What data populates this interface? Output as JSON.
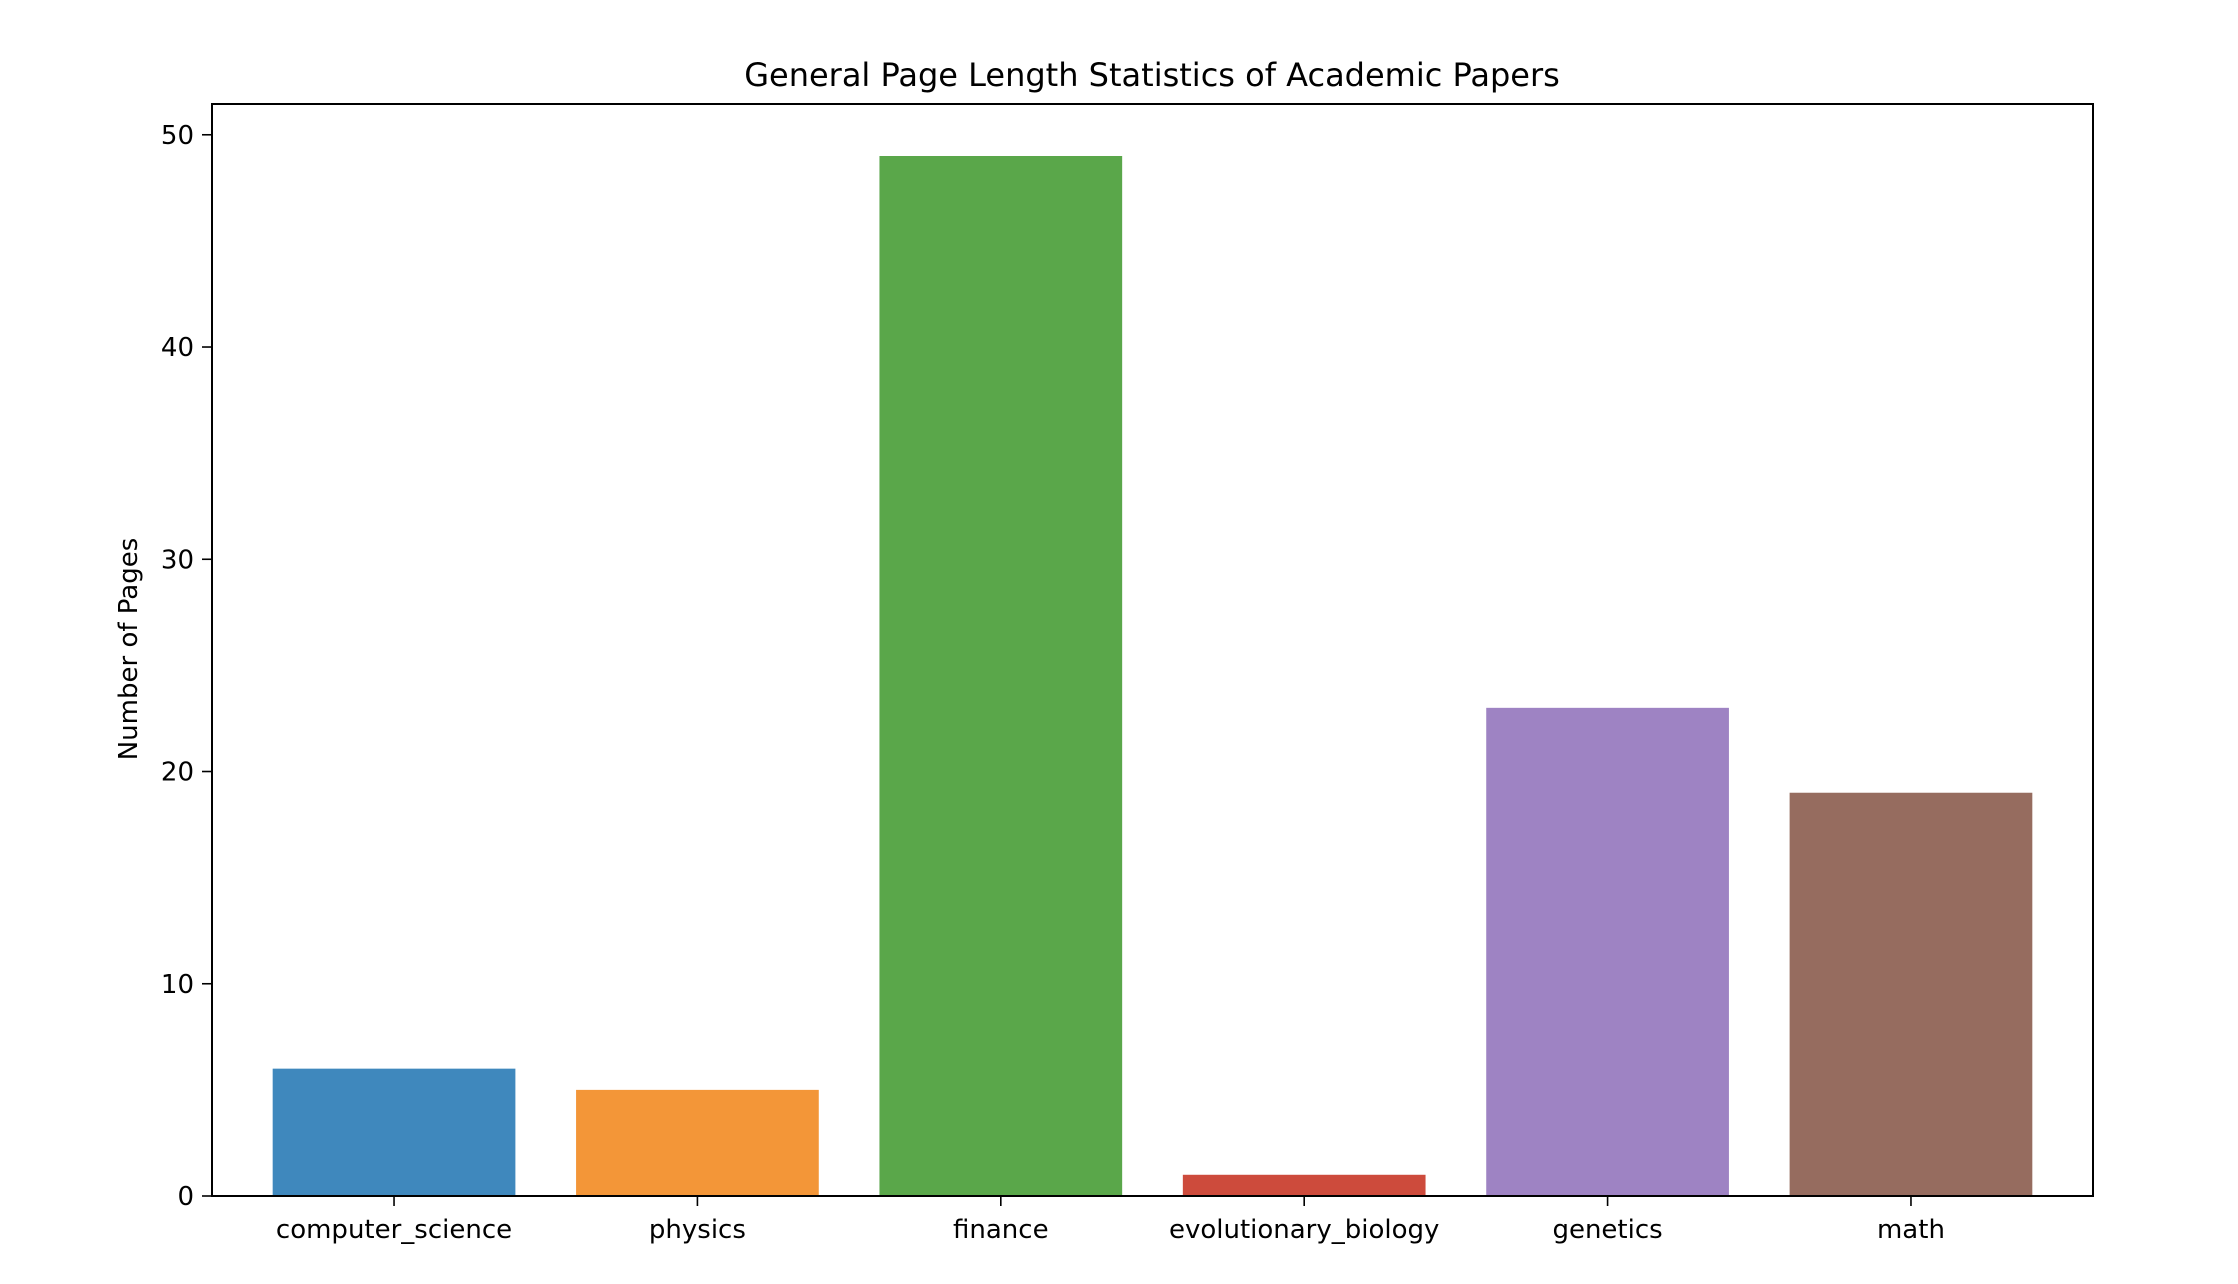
{
  "chart_data": {
    "type": "bar",
    "title": "General Page Length Statistics of Academic Papers",
    "xlabel": "",
    "ylabel": "Number of Pages",
    "categories": [
      "computer_science",
      "physics",
      "finance",
      "evolutionary_biology",
      "genetics",
      "math"
    ],
    "values": [
      6,
      5,
      49,
      1,
      23,
      19
    ],
    "colors": [
      "#3f88bd",
      "#f39638",
      "#5aa74a",
      "#cd4b3c",
      "#9e83c3",
      "#966c5f"
    ],
    "ylim": [
      0,
      51.45
    ],
    "yticks": [
      0,
      10,
      20,
      30,
      40,
      50
    ],
    "ytick_labels": [
      "0",
      "10",
      "20",
      "30",
      "40",
      "50"
    ],
    "grid": false,
    "legend": "none"
  }
}
